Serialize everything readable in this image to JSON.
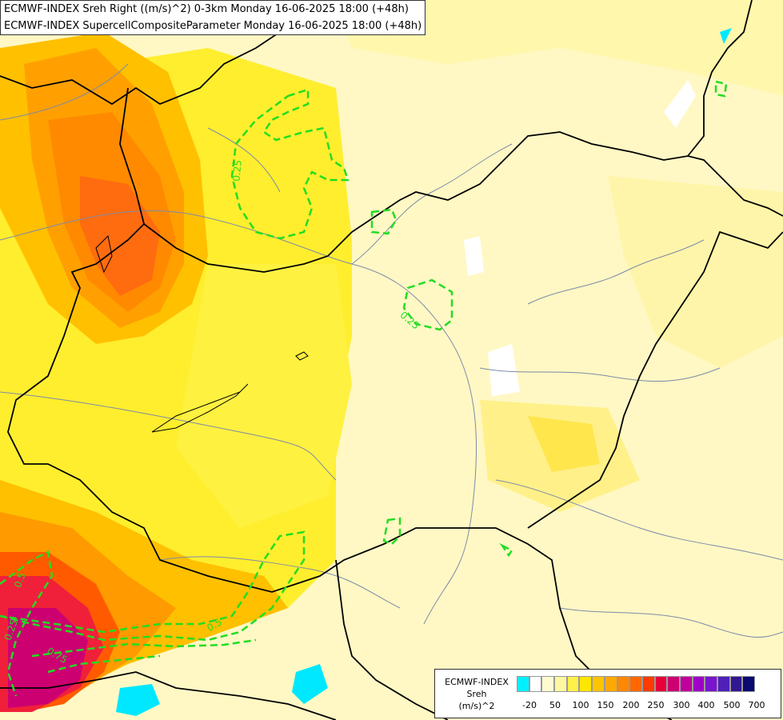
{
  "header": {
    "line1": "ECMWF-INDEX Sreh Right ((m/s)^2) 0-3km Monday 16-06-2025 18:00 (+48h)",
    "line2": "ECMWF-INDEX SupercellCompositeParameter Monday 16-06-2025 18:00 (+48h)"
  },
  "contour_labels": [
    "0.25",
    "0.25",
    "0.5",
    "0.75",
    "0.5",
    "0.25"
  ],
  "legend": {
    "title_lines": [
      "ECMWF-INDEX",
      "Sreh",
      "(m/s)^2"
    ],
    "ticks": [
      "-20",
      "50",
      "100",
      "150",
      "200",
      "250",
      "300",
      "400",
      "500",
      "700"
    ],
    "colors": [
      "#00f0ff",
      "#ffffff",
      "#fffbd0",
      "#fff6a0",
      "#fff04a",
      "#ffe600",
      "#ffc400",
      "#ffa800",
      "#ff8800",
      "#ff6800",
      "#ff3a00",
      "#e8003a",
      "#cc0070",
      "#c0009c",
      "#a000c8",
      "#7a14d0",
      "#5020b8",
      "#301890",
      "#0a0a70"
    ]
  },
  "map_colors": {
    "background": "#fff8c4",
    "border": "#000000",
    "river": "#7e8aa8",
    "contour": "#22dd22"
  }
}
